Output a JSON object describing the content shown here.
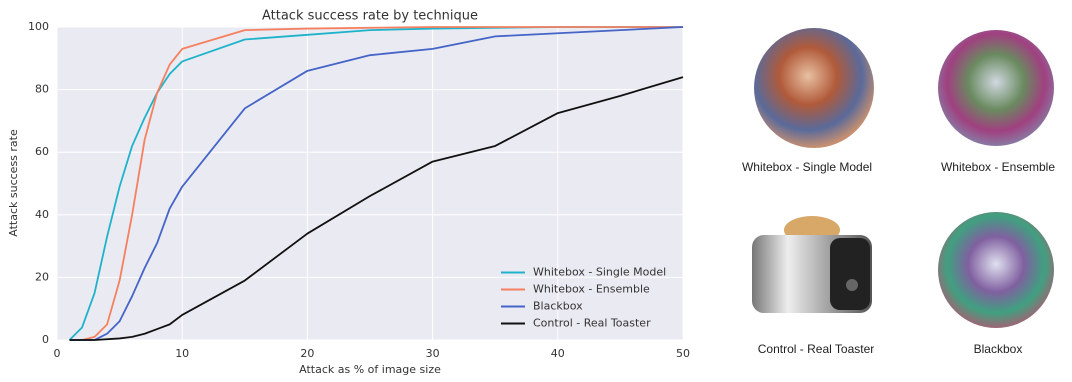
{
  "chart_data": {
    "type": "line",
    "title": "Attack success rate by technique",
    "xlabel": "Attack as % of image size",
    "ylabel": "Attack success rate",
    "xlim": [
      0,
      50
    ],
    "ylim": [
      0,
      100
    ],
    "xticks": [
      0,
      10,
      20,
      30,
      40,
      50
    ],
    "yticks": [
      0,
      20,
      40,
      60,
      80,
      100
    ],
    "grid": true,
    "legend": "lower right",
    "series": [
      {
        "name": "Whitebox - Single Model",
        "color": "#1fb3cb",
        "x": [
          1,
          2,
          3,
          4,
          5,
          6,
          7,
          8,
          9,
          10,
          15,
          20,
          25,
          30,
          40,
          50
        ],
        "values": [
          0,
          4,
          15,
          33,
          49,
          62,
          71,
          79,
          85,
          89,
          96,
          97.5,
          99,
          99.5,
          100,
          100
        ]
      },
      {
        "name": "Whitebox - Ensemble",
        "color": "#f5805f",
        "x": [
          1,
          2,
          3,
          4,
          5,
          6,
          7,
          8,
          9,
          10,
          15,
          20,
          30,
          50
        ],
        "values": [
          0,
          0,
          1,
          5,
          19,
          40,
          64,
          79,
          88,
          93,
          99,
          99.5,
          100,
          100
        ]
      },
      {
        "name": "Blackbox",
        "color": "#4464c8",
        "x": [
          1,
          2,
          3,
          4,
          5,
          6,
          7,
          8,
          9,
          10,
          15,
          20,
          25,
          30,
          35,
          40,
          50
        ],
        "values": [
          0,
          0,
          0,
          2,
          6,
          14,
          23,
          31,
          42,
          49,
          74,
          86,
          91,
          93,
          97,
          98,
          100
        ]
      },
      {
        "name": "Control - Real Toaster",
        "color": "#111111",
        "x": [
          1,
          3,
          5,
          6,
          7,
          8,
          9,
          10,
          15,
          20,
          25,
          30,
          35,
          40,
          45,
          50
        ],
        "values": [
          0,
          0,
          0.5,
          1,
          2,
          3.5,
          5,
          8,
          19,
          34,
          46,
          57,
          62,
          72.5,
          78,
          84
        ]
      }
    ]
  },
  "panels": [
    {
      "caption": "Whitebox - Single Model"
    },
    {
      "caption": "Whitebox - Ensemble"
    },
    {
      "caption": "Control - Real Toaster"
    },
    {
      "caption": "Blackbox"
    }
  ]
}
